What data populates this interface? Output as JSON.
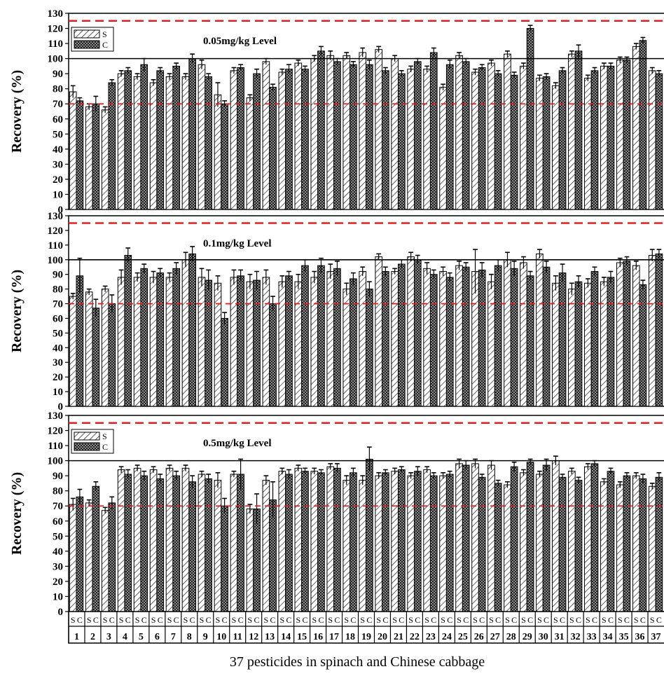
{
  "chart_data": {
    "type": "bar",
    "title": "",
    "xlabel": "37 pesticides in spinach and Chinese cabbage",
    "ylabel": "Recovery (%)",
    "ylim": [
      0,
      130
    ],
    "yticks": [
      "0",
      "10",
      "20",
      "30",
      "40",
      "50",
      "60",
      "70",
      "80",
      "90",
      "100",
      "110",
      "120",
      "130"
    ],
    "categories": [
      "1",
      "2",
      "3",
      "4",
      "5",
      "6",
      "7",
      "8",
      "9",
      "10",
      "11",
      "12",
      "13",
      "14",
      "15",
      "16",
      "17",
      "18",
      "19",
      "20",
      "21",
      "22",
      "23",
      "24",
      "25",
      "26",
      "27",
      "28",
      "29",
      "30",
      "31",
      "32",
      "33",
      "34",
      "35",
      "36",
      "37"
    ],
    "sub_labels": [
      "S",
      "C"
    ],
    "reference_lines": {
      "dashed_red": [
        70,
        125
      ],
      "solid_black": [
        100
      ]
    },
    "legend": {
      "placement": "top-left",
      "entries": [
        "S",
        "C"
      ]
    },
    "panels": [
      {
        "label": "0.05mg/kg Level",
        "show_legend": true,
        "series": [
          {
            "name": "S",
            "values": [
              78,
              68,
              66,
              90,
              88,
              84,
              88,
              88,
              96,
              76,
              92,
              74,
              98,
              91,
              97,
              100,
              102,
              102,
              104,
              106,
              100,
              93,
              93,
              81,
              102,
              91,
              97,
              103,
              95,
              87,
              82,
              103,
              87,
              95,
              99,
              108,
              92
            ],
            "errors": [
              4,
              2,
              2,
              2,
              2,
              2,
              2,
              2,
              3,
              8,
              2,
              2,
              2,
              2,
              2,
              2,
              3,
              2,
              3,
              2,
              2,
              2,
              2,
              2,
              2,
              2,
              2,
              2,
              2,
              2,
              2,
              2,
              2,
              2,
              2,
              2,
              2
            ]
          },
          {
            "name": "C",
            "values": [
              72,
              70,
              84,
              92,
              96,
              92,
              95,
              100,
              88,
              70,
              94,
              90,
              81,
              93,
              93,
              105,
              98,
              96,
              96,
              92,
              90,
              98,
              104,
              96,
              98,
              94,
              90,
              89,
              120,
              88,
              92,
              105,
              92,
              95,
              99,
              112,
              90
            ],
            "errors": [
              2,
              5,
              2,
              2,
              4,
              2,
              2,
              3,
              2,
              2,
              2,
              3,
              2,
              3,
              2,
              3,
              2,
              2,
              3,
              2,
              2,
              2,
              3,
              3,
              2,
              2,
              2,
              2,
              2,
              2,
              2,
              4,
              2,
              2,
              2,
              2,
              2
            ]
          }
        ]
      },
      {
        "label": "0.1mg/kg Level",
        "show_legend": false,
        "series": [
          {
            "name": "S",
            "values": [
              75,
              78,
              80,
              88,
              88,
              88,
              88,
              100,
              88,
              84,
              88,
              85,
              88,
              85,
              85,
              88,
              92,
              80,
              92,
              102,
              92,
              102,
              94,
              92,
              96,
              92,
              85,
              100,
              98,
              104,
              84,
              80,
              84,
              85,
              98,
              96,
              103
            ],
            "errors": [
              2,
              2,
              2,
              5,
              3,
              4,
              3,
              5,
              6,
              5,
              5,
              5,
              5,
              4,
              5,
              4,
              5,
              4,
              3,
              2,
              2,
              3,
              4,
              3,
              3,
              15,
              5,
              5,
              4,
              3,
              5,
              4,
              3,
              3,
              3,
              3,
              4
            ]
          },
          {
            "name": "C",
            "values": [
              89,
              67,
              70,
              103,
              94,
              91,
              94,
              104,
              86,
              60,
              89,
              86,
              70,
              89,
              96,
              96,
              94,
              87,
              80,
              92,
              97,
              100,
              90,
              88,
              95,
              93,
              96,
              94,
              89,
              95,
              91,
              85,
              92,
              88,
              99,
              83,
              104
            ],
            "errors": [
              12,
              6,
              6,
              5,
              3,
              3,
              4,
              5,
              7,
              4,
              4,
              6,
              5,
              3,
              4,
              5,
              5,
              4,
              5,
              3,
              3,
              3,
              3,
              3,
              3,
              5,
              4,
              5,
              3,
              4,
              6,
              4,
              3,
              4,
              3,
              3,
              3
            ]
          }
        ]
      },
      {
        "label": "0.5mg/kg Level",
        "show_legend": true,
        "series": [
          {
            "name": "S",
            "values": [
              71,
              72,
              67,
              94,
              95,
              94,
              95,
              95,
              91,
              87,
              91,
              68,
              87,
              93,
              95,
              93,
              96,
              87,
              87,
              90,
              93,
              90,
              94,
              90,
              98,
              98,
              97,
              84,
              92,
              91,
              100,
              93,
              96,
              86,
              84,
              90,
              83
            ],
            "errors": [
              4,
              2,
              2,
              2,
              2,
              2,
              2,
              2,
              2,
              5,
              2,
              3,
              3,
              2,
              2,
              2,
              2,
              3,
              3,
              2,
              2,
              2,
              2,
              2,
              3,
              3,
              3,
              2,
              2,
              2,
              3,
              2,
              2,
              2,
              2,
              2,
              2
            ]
          },
          {
            "name": "C",
            "values": [
              76,
              83,
              72,
              91,
              90,
              88,
              90,
              86,
              88,
              70,
              91,
              68,
              74,
              91,
              93,
              92,
              95,
              92,
              101,
              92,
              94,
              93,
              90,
              91,
              97,
              89,
              85,
              96,
              99,
              97,
              89,
              87,
              98,
              93,
              90,
              88,
              89
            ],
            "errors": [
              5,
              3,
              4,
              3,
              3,
              3,
              3,
              4,
              3,
              5,
              10,
              10,
              12,
              3,
              2,
              2,
              3,
              3,
              8,
              2,
              2,
              3,
              2,
              2,
              3,
              2,
              2,
              3,
              2,
              4,
              2,
              2,
              2,
              2,
              2,
              3,
              3
            ]
          }
        ]
      }
    ]
  }
}
